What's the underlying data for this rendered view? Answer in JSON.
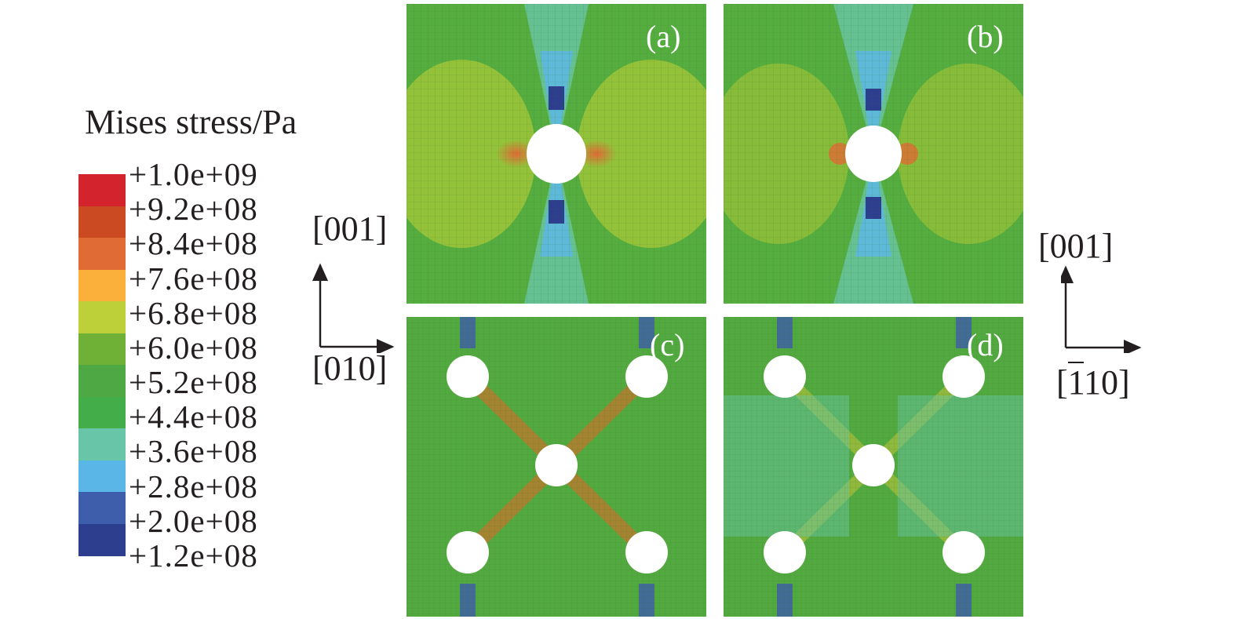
{
  "legend": {
    "title": "Mises stress/Pa",
    "ticks": [
      "+1.0e+09",
      "+9.2e+08",
      "+8.4e+08",
      "+7.6e+08",
      "+6.8e+08",
      "+6.0e+08",
      "+5.2e+08",
      "+4.4e+08",
      "+3.6e+08",
      "+2.8e+08",
      "+2.0e+08",
      "+1.2e+08"
    ],
    "colors": [
      "#d3232c",
      "#cc4a22",
      "#e06b35",
      "#fbb03b",
      "#bdd03a",
      "#6fb036",
      "#4ea945",
      "#43ad49",
      "#69c5a8",
      "#5bb6e8",
      "#3e5daa",
      "#2e3e8f"
    ]
  },
  "axes_left": {
    "vertical": "[001]",
    "horizontal": "[010]"
  },
  "axes_right": {
    "vertical": "[001]",
    "horizontal_bar": "1",
    "horizontal_rest": "10]",
    "horizontal_open": "["
  },
  "panels": [
    {
      "label": "(a)"
    },
    {
      "label": "(b)"
    },
    {
      "label": "(c)"
    },
    {
      "label": "(d)"
    }
  ]
}
